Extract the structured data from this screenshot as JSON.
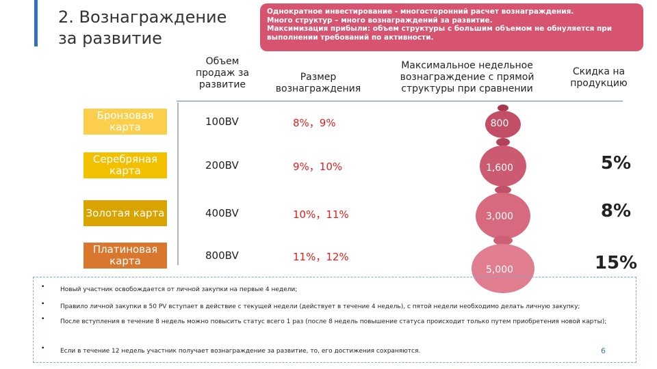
{
  "header": {
    "title": "2. Вознаграждение за развитие",
    "notes": [
      "Однократное инвестирование - многосторонний расчет вознаграждения.",
      "Много структур – много вознаграждений за развитие.",
      "Максимизация прибыли: объем структуры с большим объемом не обнуляется при выполнении требований по активности."
    ]
  },
  "table": {
    "headers": [
      "Объем продаж за развитие",
      "Размер вознаграждения",
      "Максимальное недельное вознаграждение с прямой структуры при сравнении",
      "Скидка на продукцию"
    ],
    "rows": [
      {
        "card": "Бронзовая карта",
        "volume": "100BV",
        "reward": "8%，9%",
        "max": "800"
      },
      {
        "card": "Серебряная карта",
        "volume": "200BV",
        "reward": "9%，10%",
        "max": "1,600",
        "discount": "5%"
      },
      {
        "card": "Золотая карта",
        "volume": "400BV",
        "reward": "10%，11%",
        "max": "3,000",
        "discount": "8%"
      },
      {
        "card": "Платиновая карта",
        "volume": "800BV",
        "reward": "11%，12%",
        "max": "5,000",
        "discount": "15%"
      }
    ]
  },
  "footnotes": [
    "Новый участник освобождается от личной закупки на первые 4 недели;",
    "Правило личной закупки в 50 PV вступает в действие с текущей недели (действует в течение 4 недель), с пятой недели необходимо делать личную закупку;",
    "После вступления в течение 8 недель можно повысить статус всего 1 раз (после 8 недель повышение статуса происходит только путем приобретения новой карты);",
    "Если в течение 12 недель участник получает вознаграждение за развитие, то, его достижения сохраняются."
  ],
  "page_number": "6"
}
